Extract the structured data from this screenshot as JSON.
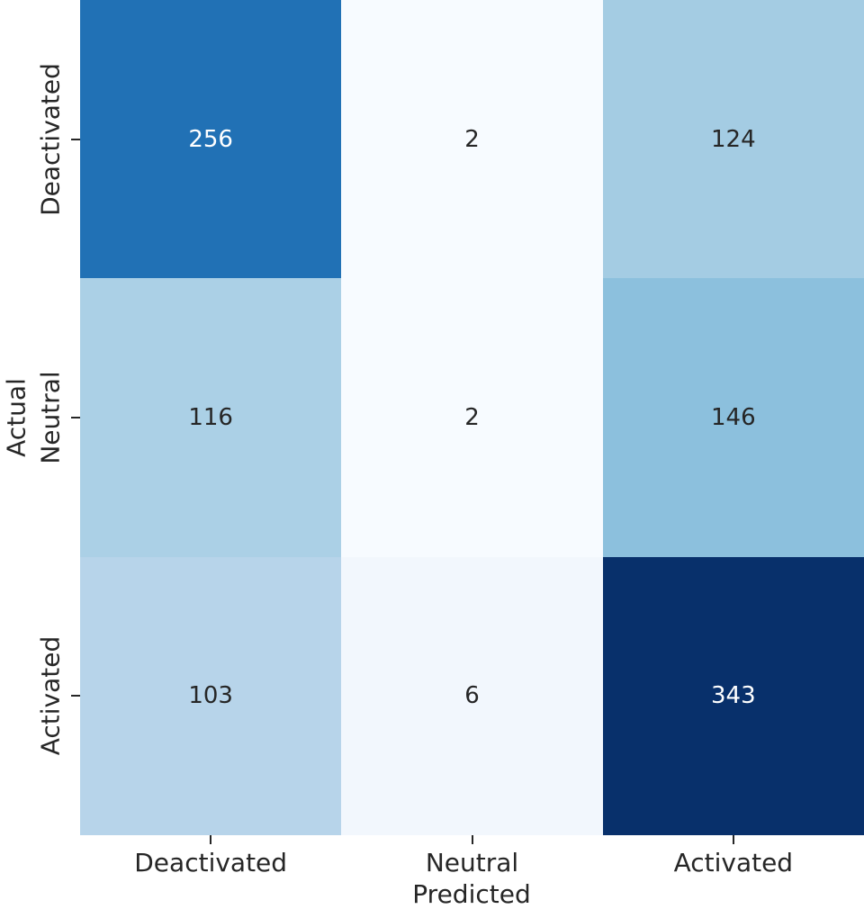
{
  "chart_data": {
    "type": "heatmap",
    "title": "",
    "xlabel": "Predicted",
    "ylabel": "Actual",
    "x_categories": [
      "Deactivated",
      "Neutral",
      "Activated"
    ],
    "y_categories": [
      "Deactivated",
      "Neutral",
      "Activated"
    ],
    "values": [
      [
        256,
        2,
        124
      ],
      [
        116,
        2,
        146
      ],
      [
        103,
        6,
        343
      ]
    ],
    "colormap": "Blues",
    "vmin": 2,
    "vmax": 343,
    "annotations_on": true,
    "colorbar": false,
    "grid": false,
    "cell_colors": [
      [
        "#2171b5",
        "#f7fbff",
        "#a4cce3"
      ],
      [
        "#abd0e6",
        "#f7fbff",
        "#8cc0dd"
      ],
      [
        "#b7d4ea",
        "#f2f7fd",
        "#08306b"
      ]
    ],
    "cell_text_colors": [
      [
        "#ffffff",
        "#262626",
        "#262626"
      ],
      [
        "#262626",
        "#262626",
        "#262626"
      ],
      [
        "#262626",
        "#262626",
        "#ffffff"
      ]
    ],
    "tick_color": "#262626",
    "label_color": "#262626"
  }
}
